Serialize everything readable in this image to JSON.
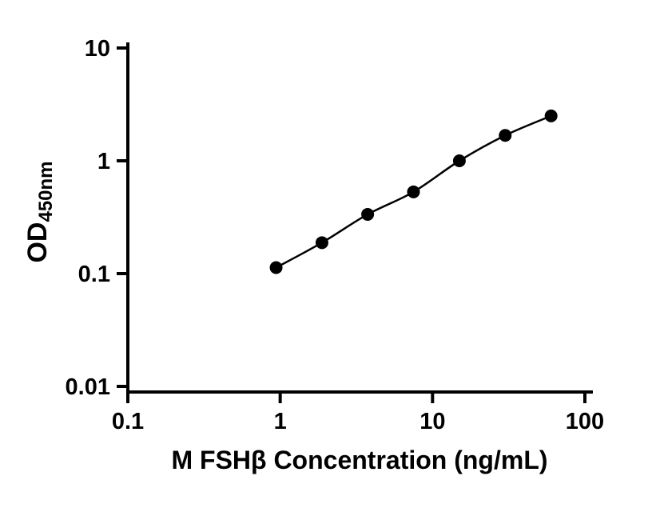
{
  "figure": {
    "background": "#ffffff",
    "foreground": "#000000"
  },
  "chart_data": {
    "type": "scatter",
    "title": "",
    "x": [
      0.94,
      1.88,
      3.75,
      7.5,
      15,
      30,
      60
    ],
    "y": [
      0.113,
      0.188,
      0.335,
      0.53,
      1.0,
      1.68,
      2.5
    ],
    "xlabel": "M FSHβ Concentration (ng/mL)",
    "ylabel_main": "OD",
    "ylabel_sub": "450nm",
    "xscale": "log",
    "yscale": "log",
    "xlim": [
      0.1,
      100
    ],
    "ylim": [
      0.01,
      10
    ],
    "x_tick_values": [
      0.1,
      1,
      10,
      100
    ],
    "x_tick_labels": [
      "0.1",
      "1",
      "10",
      "100"
    ],
    "y_tick_values": [
      0.01,
      0.1,
      1,
      10
    ],
    "y_tick_labels": [
      "0.01",
      "0.1",
      "1",
      "10"
    ],
    "grid": false,
    "legend": false,
    "marker": "circle",
    "marker_color": "#000000",
    "line_color": "#000000",
    "axis_color": "#000000"
  }
}
